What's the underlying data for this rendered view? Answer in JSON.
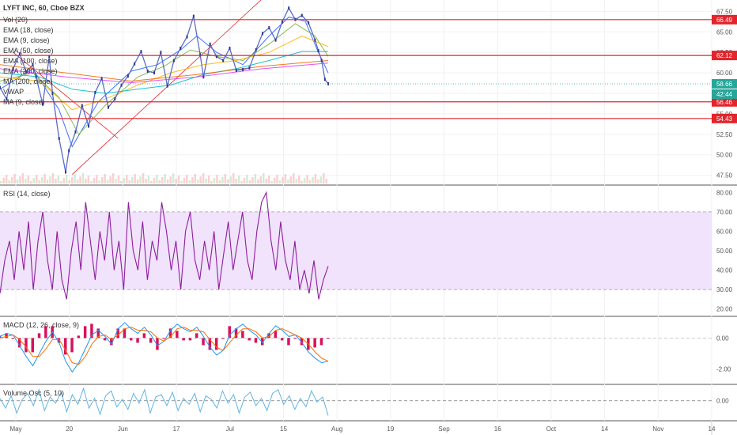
{
  "header": {
    "title": "LYFT INC, 60, Cboe BZX",
    "indicators": [
      "Vol (20)",
      "EMA (18, close)",
      "EMA (9, close)",
      "EMA (50, close)",
      "EMA (100, close)",
      "EMA (200, close)",
      "MA (200, close)",
      "VWAP",
      "MA (9, close)"
    ]
  },
  "colors": {
    "resistance": "#e3242b",
    "rsi": "#8e1e9e",
    "rsi_band": "#f1e3fb",
    "macd": "#2196f3",
    "signal": "#ff6d00",
    "hist": "#d8115c",
    "vol_osc": "#5fb4e4",
    "last_price": "#26a69a"
  },
  "chart_data": [
    {
      "type": "line",
      "name": "price",
      "title": "LYFT INC, 60, Cboe BZX",
      "ylim": [
        46.5,
        68.5
      ],
      "y_ticks": [
        47.5,
        50.0,
        52.5,
        55.0,
        57.5,
        60.0,
        62.5,
        65.0,
        67.5
      ],
      "horizontal_levels": [
        {
          "value": 66.49,
          "label": "66.49"
        },
        {
          "value": 62.12,
          "label": "62.12"
        },
        {
          "value": 56.46,
          "label": "56.46"
        },
        {
          "value": 54.43,
          "label": "54.43"
        }
      ],
      "last_price": {
        "value": 58.66,
        "label": "58.66"
      },
      "countdown": "42:44",
      "x_ticks": [
        "May",
        "20",
        "Jun",
        "17",
        "Jul",
        "15",
        "Aug",
        "19",
        "Sep",
        "16",
        "Oct",
        "14",
        "Nov",
        "14"
      ],
      "close": [
        [
          0.0,
          58.2
        ],
        [
          0.02,
          56.8
        ],
        [
          0.04,
          60.5
        ],
        [
          0.06,
          62.3
        ],
        [
          0.08,
          60.1
        ],
        [
          0.1,
          61.0
        ],
        [
          0.11,
          59.5
        ],
        [
          0.13,
          56.2
        ],
        [
          0.15,
          62.0
        ],
        [
          0.16,
          57.5
        ],
        [
          0.18,
          52.0
        ],
        [
          0.2,
          47.9
        ],
        [
          0.21,
          50.5
        ],
        [
          0.23,
          52.8
        ],
        [
          0.25,
          56.0
        ],
        [
          0.27,
          53.5
        ],
        [
          0.29,
          57.6
        ],
        [
          0.31,
          59.3
        ],
        [
          0.33,
          55.8
        ],
        [
          0.35,
          56.8
        ],
        [
          0.37,
          58.5
        ],
        [
          0.39,
          59.6
        ],
        [
          0.41,
          61.1
        ],
        [
          0.43,
          62.6
        ],
        [
          0.45,
          60.2
        ],
        [
          0.47,
          60.0
        ],
        [
          0.49,
          62.5
        ],
        [
          0.51,
          58.4
        ],
        [
          0.53,
          61.5
        ],
        [
          0.55,
          63.0
        ],
        [
          0.57,
          64.4
        ],
        [
          0.59,
          66.9
        ],
        [
          0.61,
          62.2
        ],
        [
          0.62,
          59.5
        ],
        [
          0.64,
          63.5
        ],
        [
          0.66,
          62.0
        ],
        [
          0.68,
          61.5
        ],
        [
          0.7,
          63.0
        ],
        [
          0.72,
          60.3
        ],
        [
          0.74,
          60.4
        ],
        [
          0.76,
          60.6
        ],
        [
          0.78,
          62.8
        ],
        [
          0.8,
          64.8
        ],
        [
          0.82,
          65.5
        ],
        [
          0.84,
          64.0
        ],
        [
          0.86,
          66.2
        ],
        [
          0.88,
          67.9
        ],
        [
          0.9,
          66.5
        ],
        [
          0.92,
          67.0
        ],
        [
          0.94,
          66.1
        ],
        [
          0.96,
          64.0
        ],
        [
          0.97,
          62.7
        ],
        [
          0.98,
          61.5
        ],
        [
          0.99,
          59.2
        ],
        [
          1.0,
          58.66
        ]
      ],
      "emas": [
        {
          "name": "EMA (9, close)",
          "color": "#2962ff",
          "points": [
            [
              0.0,
              58.0
            ],
            [
              0.1,
              60.5
            ],
            [
              0.18,
              55.5
            ],
            [
              0.22,
              51.0
            ],
            [
              0.3,
              56.5
            ],
            [
              0.4,
              60.2
            ],
            [
              0.48,
              61.0
            ],
            [
              0.55,
              62.8
            ],
            [
              0.6,
              64.5
            ],
            [
              0.66,
              62.5
            ],
            [
              0.74,
              61.0
            ],
            [
              0.82,
              64.5
            ],
            [
              0.88,
              66.8
            ],
            [
              0.93,
              66.3
            ],
            [
              0.97,
              62.5
            ],
            [
              1.0,
              60.0
            ]
          ]
        },
        {
          "name": "EMA (18, close)",
          "color": "#7cb342",
          "points": [
            [
              0.0,
              59.0
            ],
            [
              0.1,
              60.0
            ],
            [
              0.18,
              57.0
            ],
            [
              0.24,
              52.5
            ],
            [
              0.32,
              56.0
            ],
            [
              0.42,
              59.5
            ],
            [
              0.5,
              60.8
            ],
            [
              0.58,
              62.8
            ],
            [
              0.66,
              62.0
            ],
            [
              0.74,
              61.5
            ],
            [
              0.82,
              63.5
            ],
            [
              0.9,
              66.0
            ],
            [
              0.96,
              64.5
            ],
            [
              1.0,
              62.0
            ]
          ]
        },
        {
          "name": "EMA (50, close)",
          "color": "#ffb300",
          "points": [
            [
              0.0,
              59.5
            ],
            [
              0.12,
              59.0
            ],
            [
              0.22,
              55.5
            ],
            [
              0.32,
              56.8
            ],
            [
              0.42,
              58.5
            ],
            [
              0.52,
              60.0
            ],
            [
              0.62,
              61.0
            ],
            [
              0.72,
              61.5
            ],
            [
              0.82,
              62.5
            ],
            [
              0.92,
              64.5
            ],
            [
              1.0,
              63.2
            ]
          ]
        },
        {
          "name": "EMA (100, close)",
          "color": "#00bcd4",
          "points": [
            [
              0.0,
              60.0
            ],
            [
              0.12,
              59.5
            ],
            [
              0.22,
              58.0
            ],
            [
              0.32,
              57.5
            ],
            [
              0.42,
              58.0
            ],
            [
              0.52,
              58.5
            ],
            [
              0.62,
              59.8
            ],
            [
              0.72,
              60.5
            ],
            [
              0.82,
              61.5
            ],
            [
              0.92,
              62.6
            ],
            [
              1.0,
              62.6
            ]
          ]
        },
        {
          "name": "EMA (200, close)",
          "color": "#e040fb",
          "points": [
            [
              0.0,
              60.5
            ],
            [
              0.2,
              59.5
            ],
            [
              0.4,
              58.8
            ],
            [
              0.6,
              59.5
            ],
            [
              0.8,
              60.5
            ],
            [
              1.0,
              61.2
            ]
          ]
        },
        {
          "name": "MA (200, close)",
          "color": "#ef6c00",
          "points": [
            [
              0.0,
              61.0
            ],
            [
              0.2,
              60.0
            ],
            [
              0.4,
              59.0
            ],
            [
              0.6,
              59.8
            ],
            [
              0.8,
              60.8
            ],
            [
              1.0,
              61.5
            ]
          ]
        }
      ]
    },
    {
      "type": "line",
      "name": "rsi",
      "title": "RSI (14, close)",
      "ylim": [
        17,
        83
      ],
      "y_ticks": [
        20,
        30,
        40,
        50,
        60,
        70,
        80
      ],
      "band": [
        30,
        70
      ],
      "series": [
        {
          "name": "RSI",
          "values": [
            28,
            45,
            55,
            35,
            60,
            40,
            65,
            30,
            55,
            70,
            45,
            30,
            60,
            35,
            25,
            50,
            65,
            40,
            75,
            55,
            35,
            60,
            45,
            70,
            40,
            55,
            30,
            75,
            50,
            40,
            65,
            35,
            55,
            45,
            75,
            60,
            40,
            55,
            30,
            60,
            70,
            45,
            35,
            55,
            40,
            60,
            30,
            48,
            65,
            40,
            55,
            70,
            45,
            35,
            60,
            75,
            80,
            55,
            40,
            65,
            45,
            35,
            55,
            30,
            40,
            28,
            45,
            25,
            35,
            42
          ]
        }
      ]
    },
    {
      "type": "line",
      "name": "macd",
      "title": "MACD (12, 26, close, 9)",
      "ylim": [
        -2.9,
        1.3
      ],
      "y_ticks": [
        0.0,
        -2.0
      ],
      "series": [
        {
          "name": "MACD",
          "values": [
            0.1,
            0.3,
            0.2,
            -0.5,
            -1.2,
            -1.8,
            -1.0,
            -0.2,
            0.4,
            -0.3,
            -1.5,
            -2.2,
            -1.6,
            -0.7,
            0.2,
            0.5,
            0.1,
            -0.4,
            0.6,
            1.0,
            0.6,
            0.3,
            0.7,
            0.2,
            -0.5,
            -0.2,
            0.5,
            0.9,
            0.6,
            0.4,
            0.7,
            0.1,
            -0.6,
            -1.1,
            -0.8,
            0.2,
            0.6,
            0.9,
            0.5,
            0.2,
            -0.3,
            0.3,
            0.8,
            0.5,
            0.1,
            0.2,
            -0.3,
            -0.9,
            -1.3,
            -1.6,
            -1.5
          ]
        },
        {
          "name": "Signal",
          "values": [
            0.0,
            0.1,
            0.2,
            -0.1,
            -0.6,
            -1.2,
            -1.2,
            -0.7,
            -0.1,
            -0.1,
            -0.8,
            -1.6,
            -1.7,
            -1.2,
            -0.4,
            0.1,
            0.2,
            -0.1,
            0.2,
            0.6,
            0.7,
            0.5,
            0.5,
            0.4,
            0.0,
            -0.2,
            0.1,
            0.6,
            0.7,
            0.5,
            0.5,
            0.4,
            -0.1,
            -0.6,
            -0.8,
            -0.3,
            0.2,
            0.6,
            0.6,
            0.4,
            0.0,
            0.1,
            0.5,
            0.6,
            0.4,
            0.2,
            0.0,
            -0.4,
            -0.9,
            -1.3,
            -1.5
          ]
        }
      ]
    },
    {
      "type": "line",
      "name": "volume_osc",
      "title": "Volume Osc (5, 10)",
      "ylim": [
        -1.5,
        1.2
      ],
      "y_ticks": [
        0.0
      ],
      "series": [
        {
          "name": "Volume Osc",
          "values": [
            0.2,
            -0.6,
            0.4,
            -1.0,
            0.1,
            0.6,
            -0.4,
            0.9,
            -0.8,
            0.3,
            -0.2,
            0.7,
            -0.9,
            0.5,
            -0.3,
            1.0,
            -0.6,
            0.2,
            -1.1,
            0.4,
            0.8,
            -0.5,
            0.1,
            -0.7,
            0.6,
            -0.2,
            0.9,
            -1.0,
            0.3,
            0.5,
            -0.4,
            0.7,
            -0.8,
            0.2,
            -0.3,
            0.6,
            -0.9,
            0.4,
            0.1,
            -0.6,
            0.8,
            -0.2,
            0.5,
            -1.0,
            0.3,
            0.7,
            -0.4,
            0.2,
            -0.8,
            0.6,
            0.9,
            -0.3,
            0.4,
            -0.7,
            0.2,
            -0.5,
            0.8,
            -0.1,
            0.3,
            -1.2
          ]
        }
      ]
    }
  ]
}
